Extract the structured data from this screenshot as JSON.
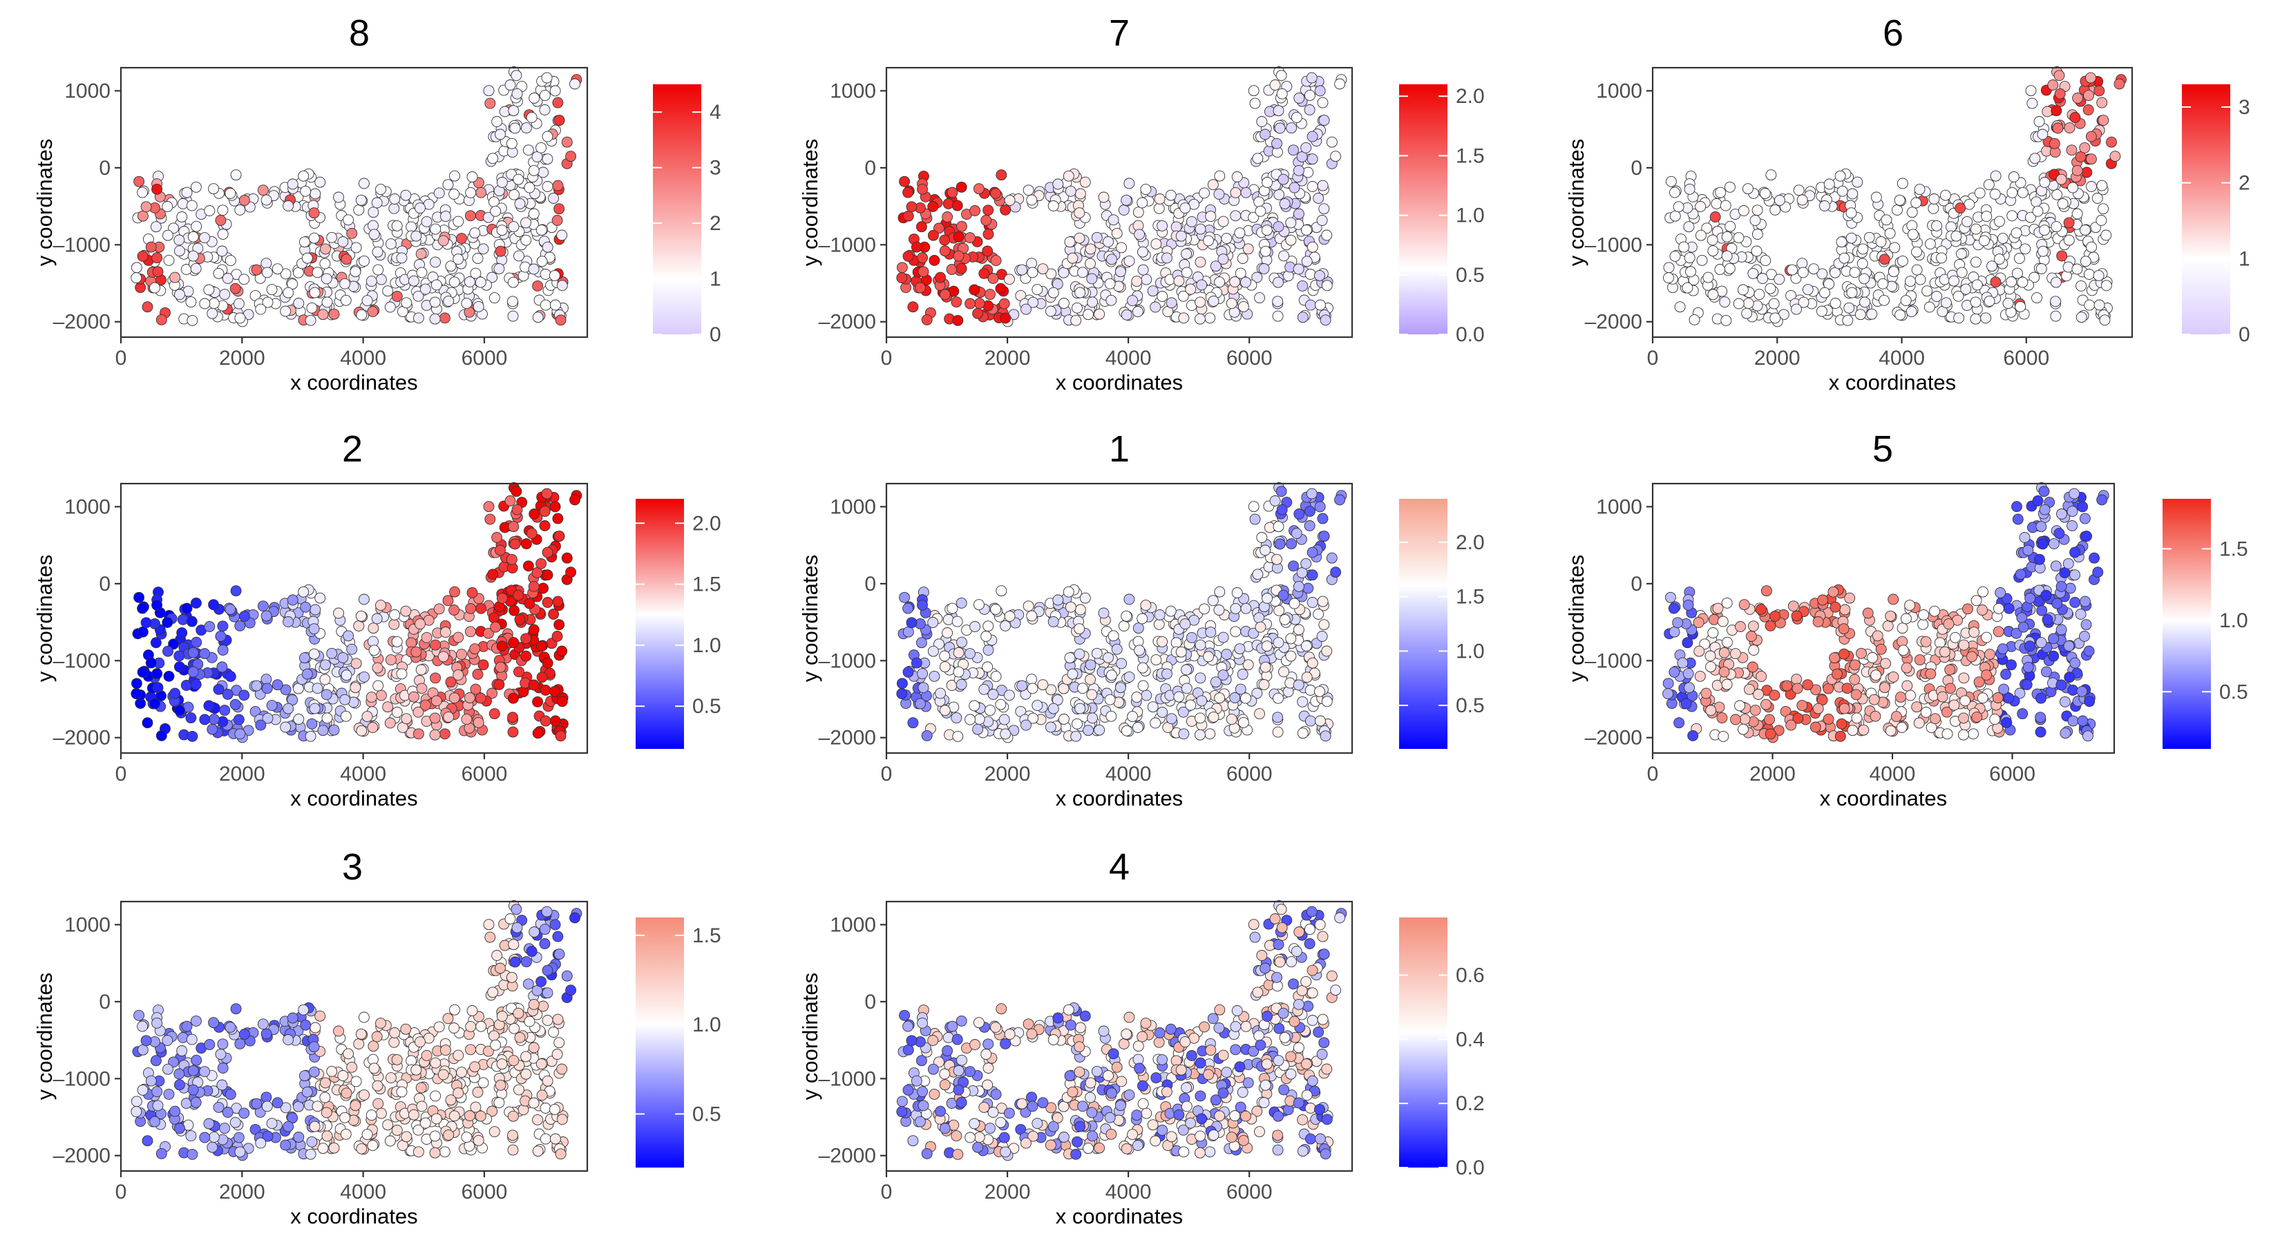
{
  "figure": {
    "xlabel": "x coordinates",
    "ylabel": "y coordinates"
  },
  "chart_data": [
    {
      "type": "scatter",
      "title": "8",
      "xlabel": "x coordinates",
      "ylabel": "y coordinates",
      "xlim": [
        0,
        7700
      ],
      "ylim": [
        -2200,
        1300
      ],
      "x_ticks": [
        0,
        2000,
        4000,
        6000
      ],
      "y_ticks": [
        -2000,
        -1000,
        0,
        1000
      ],
      "colorbar": {
        "min": 0,
        "max": 4.5,
        "mid": 1,
        "ticks": [
          0,
          1,
          2,
          3,
          4
        ],
        "low_color": "#d9ccff",
        "mid_color": "#ffffff",
        "high_color": "#ee0000"
      },
      "pattern": "sparse_hot_edges",
      "seed": 11
    },
    {
      "type": "scatter",
      "title": "7",
      "xlabel": "x coordinates",
      "ylabel": "y coordinates",
      "xlim": [
        0,
        7700
      ],
      "ylim": [
        -2200,
        1300
      ],
      "x_ticks": [
        0,
        2000,
        4000,
        6000
      ],
      "y_ticks": [
        -2000,
        -1000,
        0,
        1000
      ],
      "colorbar": {
        "min": 0,
        "max": 2.1,
        "mid": 0.55,
        "ticks": [
          0.0,
          0.5,
          1.0,
          1.5,
          2.0
        ],
        "low_color": "#b39dff",
        "mid_color": "#ffffff",
        "high_color": "#ee0000"
      },
      "pattern": "hot_left",
      "seed": 23
    },
    {
      "type": "scatter",
      "title": "6",
      "xlabel": "x coordinates",
      "ylabel": "y coordinates",
      "xlim": [
        0,
        7700
      ],
      "ylim": [
        -2200,
        1300
      ],
      "x_ticks": [
        0,
        2000,
        4000,
        6000
      ],
      "y_ticks": [
        -2000,
        -1000,
        0,
        1000
      ],
      "colorbar": {
        "min": 0,
        "max": 3.3,
        "mid": 1,
        "ticks": [
          0,
          1,
          2,
          3
        ],
        "low_color": "#d9ccff",
        "mid_color": "#ffffff",
        "high_color": "#ee0000"
      },
      "pattern": "hot_topright",
      "seed": 37
    },
    {
      "type": "scatter",
      "title": "2",
      "xlabel": "x coordinates",
      "ylabel": "y coordinates",
      "xlim": [
        0,
        7700
      ],
      "ylim": [
        -2200,
        1300
      ],
      "x_ticks": [
        0,
        2000,
        4000,
        6000
      ],
      "y_ticks": [
        -2000,
        -1000,
        0,
        1000
      ],
      "colorbar": {
        "min": 0.15,
        "max": 2.2,
        "mid": 1.25,
        "ticks": [
          0.5,
          1.0,
          1.5,
          2.0
        ],
        "low_color": "#0000ff",
        "mid_color": "#ffffff",
        "high_color": "#ee0000"
      },
      "pattern": "gradient_right_hot",
      "seed": 41
    },
    {
      "type": "scatter",
      "title": "1",
      "xlabel": "x coordinates",
      "ylabel": "y coordinates",
      "xlim": [
        0,
        7700
      ],
      "ylim": [
        -2200,
        1300
      ],
      "x_ticks": [
        0,
        2000,
        4000,
        6000
      ],
      "y_ticks": [
        -2000,
        -1000,
        0,
        1000
      ],
      "colorbar": {
        "min": 0.1,
        "max": 2.4,
        "mid": 1.6,
        "ticks": [
          0.5,
          1.0,
          1.5,
          2.0
        ],
        "low_color": "#0000ff",
        "mid_color": "#ffffff",
        "high_color": "#f4a08c"
      },
      "pattern": "cold_corners",
      "seed": 53
    },
    {
      "type": "scatter",
      "title": "5",
      "xlabel": "x coordinates",
      "ylabel": "y coordinates",
      "xlim": [
        0,
        7700
      ],
      "ylim": [
        -2200,
        1300
      ],
      "x_ticks": [
        0,
        2000,
        4000,
        6000
      ],
      "y_ticks": [
        -2000,
        -1000,
        0,
        1000
      ],
      "colorbar": {
        "min": 0.1,
        "max": 1.85,
        "mid": 1.0,
        "ticks": [
          0.5,
          1.0,
          1.5
        ],
        "low_color": "#0000ff",
        "mid_color": "#ffffff",
        "high_color": "#ee2a1a"
      },
      "pattern": "hot_center_cold_right",
      "seed": 67
    },
    {
      "type": "scatter",
      "title": "3",
      "xlabel": "x coordinates",
      "ylabel": "y coordinates",
      "xlim": [
        0,
        7700
      ],
      "ylim": [
        -2200,
        1300
      ],
      "x_ticks": [
        0,
        2000,
        4000,
        6000
      ],
      "y_ticks": [
        -2000,
        -1000,
        0,
        1000
      ],
      "colorbar": {
        "min": 0.2,
        "max": 1.6,
        "mid": 1.0,
        "ticks": [
          0.5,
          1.0,
          1.5
        ],
        "low_color": "#0000ff",
        "mid_color": "#ffffff",
        "high_color": "#f48c78"
      },
      "pattern": "cold_left_hot_mid",
      "seed": 79
    },
    {
      "type": "scatter",
      "title": "4",
      "xlabel": "x coordinates",
      "ylabel": "y coordinates",
      "xlim": [
        0,
        7700
      ],
      "ylim": [
        -2200,
        1300
      ],
      "x_ticks": [
        0,
        2000,
        4000,
        6000
      ],
      "y_ticks": [
        -2000,
        -1000,
        0,
        1000
      ],
      "colorbar": {
        "min": 0.0,
        "max": 0.78,
        "mid": 0.42,
        "ticks": [
          0.0,
          0.2,
          0.4,
          0.6
        ],
        "low_color": "#0000ff",
        "mid_color": "#ffffff",
        "high_color": "#f48c78"
      },
      "pattern": "mixed",
      "seed": 97
    }
  ]
}
